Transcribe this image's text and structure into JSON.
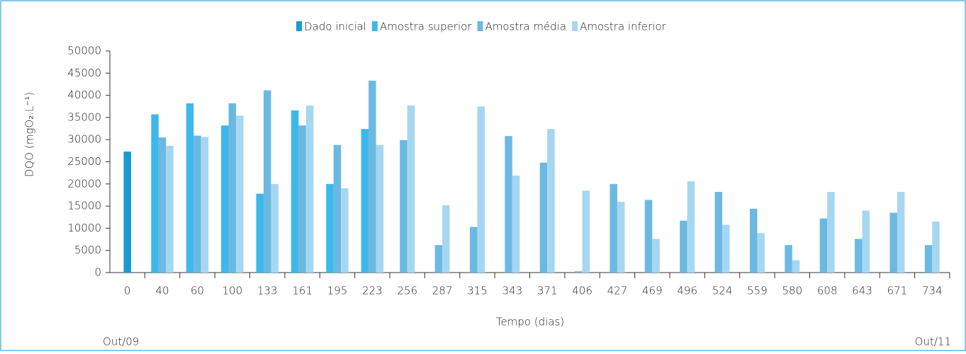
{
  "chart_data": {
    "type": "bar",
    "y_label": "DQO (mgO₂.L⁻¹)",
    "x_label": "Tempo (dias)",
    "annotations": [
      "Out/09",
      "Out/11"
    ],
    "categories": [
      "0",
      "40",
      "60",
      "100",
      "133",
      "161",
      "195",
      "223",
      "256",
      "287",
      "315",
      "343",
      "371",
      "406",
      "427",
      "469",
      "496",
      "524",
      "559",
      "580",
      "608",
      "643",
      "671",
      "734"
    ],
    "series": [
      {
        "name": "Dado inicial",
        "color": "#1a9ad0",
        "values": [
          27300,
          null,
          null,
          null,
          null,
          null,
          null,
          null,
          null,
          null,
          null,
          null,
          null,
          null,
          null,
          null,
          null,
          null,
          null,
          null,
          null,
          null,
          null,
          null
        ]
      },
      {
        "name": "Amostra superior",
        "color": "#3cb8eb",
        "values": [
          null,
          35700,
          38200,
          33200,
          17800,
          36600,
          20000,
          32400,
          null,
          null,
          null,
          null,
          null,
          null,
          null,
          null,
          null,
          null,
          null,
          null,
          null,
          null,
          null,
          null
        ]
      },
      {
        "name": "Amostra média",
        "color": "#6bb9e2",
        "values": [
          null,
          30500,
          30900,
          38200,
          41100,
          33200,
          28800,
          43300,
          29900,
          6200,
          10300,
          30800,
          24800,
          300,
          20000,
          16400,
          11700,
          18200,
          14400,
          6200,
          12200,
          7600,
          13500,
          6200
        ]
      },
      {
        "name": "Amostra inferior",
        "color": "#a6d7f1",
        "values": [
          null,
          28600,
          30600,
          35400,
          20000,
          37700,
          19000,
          28800,
          37700,
          15200,
          37500,
          21900,
          32400,
          18500,
          16000,
          7600,
          20600,
          10800,
          8900,
          2800,
          18200,
          14000,
          18200,
          11500
        ]
      }
    ],
    "ylim": [
      0,
      50000
    ],
    "yticks": [
      0,
      5000,
      10000,
      15000,
      20000,
      25000,
      30000,
      35000,
      40000,
      45000,
      50000
    ],
    "legend": "top"
  }
}
